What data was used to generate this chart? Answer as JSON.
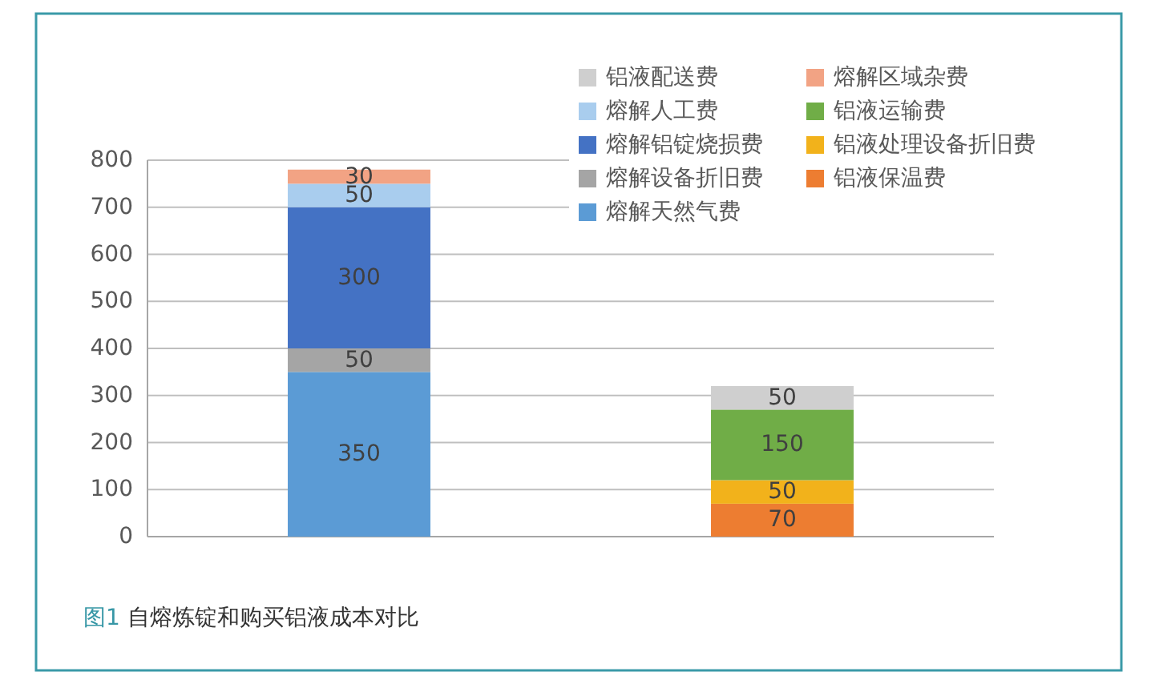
{
  "chart_data": {
    "type": "bar",
    "title": "图1 自熔炼锭和购买铝液成本对比",
    "categories": [
      null,
      null
    ],
    "stacked": true,
    "series": [
      {
        "name": "熔解天然气费",
        "color": "#5b9bd5",
        "values": [
          350,
          null
        ]
      },
      {
        "name": "铝液保温费",
        "color": "#ed7d31",
        "values": [
          null,
          70
        ]
      },
      {
        "name": "熔解设备折旧费",
        "color": "#a5a5a5",
        "values": [
          50,
          null
        ]
      },
      {
        "name": "铝液处理设备折旧费",
        "color": "#f2b21b",
        "values": [
          null,
          50
        ]
      },
      {
        "name": "熔解铝锭烧损费",
        "color": "#4472c4",
        "values": [
          300,
          null
        ]
      },
      {
        "name": "铝液运输费",
        "color": "#70ad47",
        "values": [
          null,
          150
        ]
      },
      {
        "name": "熔解人工费",
        "color": "#a9cdee",
        "values": [
          50,
          null
        ]
      },
      {
        "name": "熔解区域杂费",
        "color": "#f2a384",
        "values": [
          30,
          null
        ]
      },
      {
        "name": "铝液配送费",
        "color": "#cfcfcf",
        "values": [
          null,
          50
        ]
      }
    ],
    "ylim": [
      0,
      800
    ],
    "yticks": [
      0,
      100,
      200,
      300,
      400,
      500,
      600,
      700,
      800
    ],
    "grid": "y",
    "legend": "top right",
    "data_labels": true
  }
}
